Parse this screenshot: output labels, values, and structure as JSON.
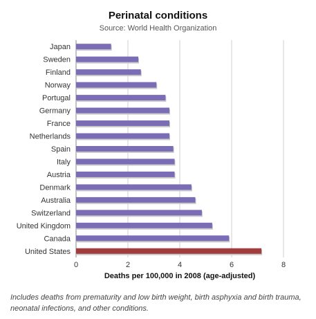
{
  "chart_data": {
    "type": "bar",
    "orientation": "horizontal",
    "title": "Perinatal conditions",
    "subtitle": "Source: World Health Organization",
    "xlabel": "Deaths per 100,000 in 2008 (age-adjusted)",
    "ylabel": "",
    "xlim": [
      0,
      8
    ],
    "xticks": [
      "0",
      "2",
      "4",
      "6",
      "8"
    ],
    "grid": true,
    "legend": "none",
    "categories": [
      "Japan",
      "Sweden",
      "Finland",
      "Norway",
      "Portugal",
      "Germany",
      "France",
      "Netherlands",
      "Spain",
      "Italy",
      "Austria",
      "Denmark",
      "Australia",
      "Switzerland",
      "United Kingdom",
      "Canada",
      "United States"
    ],
    "values": [
      1.35,
      2.4,
      2.5,
      3.1,
      3.45,
      3.6,
      3.6,
      3.6,
      3.75,
      3.8,
      3.8,
      4.45,
      4.6,
      4.85,
      5.25,
      5.9,
      7.15
    ],
    "bar_color": "#7b6cb6",
    "highlight_color": "#a23d3d",
    "highlight": "United States",
    "footnote": "Includes deaths from prematurity and low birth weight, birth asphyxia and birth trauma, neonatal infections, and other conditions."
  }
}
